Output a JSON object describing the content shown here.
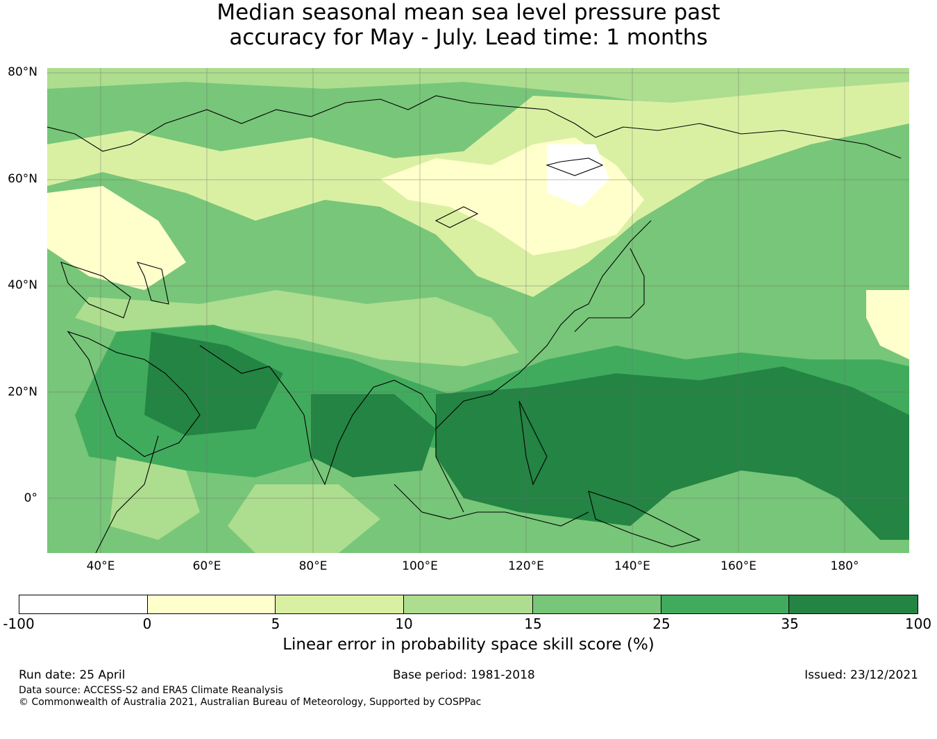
{
  "title_line1": "Median seasonal mean sea level pressure past",
  "title_line2": "accuracy for May - July. Lead time: 1 months",
  "map": {
    "lat_ticks": [
      "80°N",
      "60°N",
      "40°N",
      "20°N",
      "0°"
    ],
    "lon_ticks": [
      "40°E",
      "60°E",
      "80°E",
      "100°E",
      "120°E",
      "140°E",
      "160°E",
      "180°"
    ],
    "extent": {
      "lon_min": 30,
      "lon_max": 192,
      "lat_min": -10,
      "lat_max": 81
    }
  },
  "colorbar": {
    "label": "Linear error in probability space skill score (%)",
    "ticks": [
      "-100",
      "0",
      "5",
      "10",
      "15",
      "25",
      "35",
      "100"
    ],
    "colors": [
      "#ffffff",
      "#ffffcc",
      "#d9f0a3",
      "#addd8e",
      "#78c679",
      "#41ab5d",
      "#238443"
    ]
  },
  "footer": {
    "run_date": "Run date: 25 April",
    "base_period": "Base period: 1981-2018",
    "issued": "Issued: 23/12/2021",
    "data_source": "Data source: ACCESS-S2 and ERA5 Climate Reanalysis",
    "copyright": "© Commonwealth of Australia 2021, Australian Bureau of Meteorology, Supported by COSPPac"
  }
}
